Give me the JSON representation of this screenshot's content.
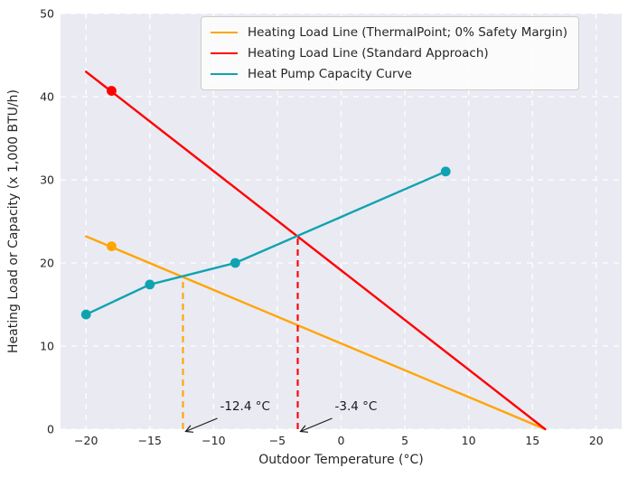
{
  "chart_data": {
    "type": "line",
    "title": "",
    "xlabel": "Outdoor Temperature (°C)",
    "ylabel": "Heating Load or Capacity (x 1,000 BTU/h)",
    "xlim": [
      -22,
      22
    ],
    "ylim": [
      0,
      50
    ],
    "x_ticks": [
      -20,
      -15,
      -10,
      -5,
      0,
      5,
      10,
      15,
      20
    ],
    "x_tick_labels": [
      "−20",
      "−15",
      "−10",
      "−5",
      "0",
      "5",
      "10",
      "15",
      "20"
    ],
    "y_ticks": [
      0,
      10,
      20,
      30,
      40,
      50
    ],
    "y_tick_labels": [
      "0",
      "10",
      "20",
      "30",
      "40",
      "50"
    ],
    "grid": {
      "on": true,
      "color": "#ffffff",
      "style": "dashed"
    },
    "plot_bg": "#eaeaf2",
    "figure_bg": "#ffffff",
    "legend_position": "upper right",
    "series": [
      {
        "name": "Heating Load Line (ThermalPoint; 0% Safety Margin)",
        "color": "#ffa500",
        "x": [
          -20,
          16
        ],
        "y": [
          23.2,
          0
        ],
        "markers": [
          {
            "x": -18,
            "y": 22
          }
        ]
      },
      {
        "name": "Heating Load Line (Standard Approach)",
        "color": "#ff0000",
        "x": [
          -20,
          16
        ],
        "y": [
          43,
          0
        ],
        "markers": [
          {
            "x": -18,
            "y": 40.7
          }
        ]
      },
      {
        "name": "Heat Pump Capacity Curve",
        "color": "#0fa3b1",
        "x": [
          -20,
          -15,
          -8.3,
          8.2
        ],
        "y": [
          13.8,
          17.4,
          20,
          31
        ],
        "markers": "all"
      }
    ],
    "balance_points": [
      {
        "label": "-12.4 °C",
        "x": -12.4,
        "y_top": 18.3,
        "color": "#ffa500"
      },
      {
        "label": "-3.4 °C",
        "x": -3.4,
        "y_top": 23.1,
        "color": "#ff0000"
      }
    ]
  }
}
